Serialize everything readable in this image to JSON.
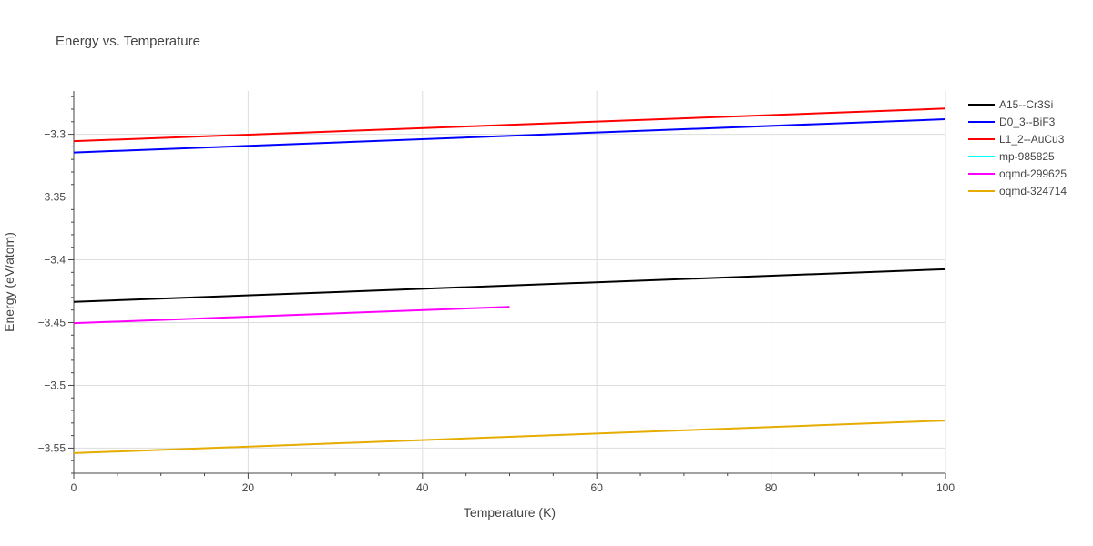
{
  "chart_data": {
    "type": "line",
    "title": "Energy vs. Temperature",
    "xlabel": "Temperature (K)",
    "ylabel": "Energy (eV/atom)",
    "xlim": [
      0,
      100
    ],
    "ylim": [
      -3.57,
      -3.2655
    ],
    "x_ticks": [
      0,
      20,
      40,
      60,
      80,
      100
    ],
    "x_tick_labels": [
      "0",
      "20",
      "40",
      "60",
      "80",
      "100"
    ],
    "y_ticks": [
      -3.3,
      -3.35,
      -3.4,
      -3.45,
      -3.5,
      -3.55
    ],
    "y_tick_labels": [
      "−3.3",
      "−3.35",
      "−3.4",
      "−3.45",
      "−3.5",
      "−3.55"
    ],
    "grid": true,
    "legend_position": "right",
    "series": [
      {
        "name": "A15--Cr3Si",
        "color": "#000000",
        "x": [
          0,
          100
        ],
        "y": [
          -3.4335,
          -3.4075
        ]
      },
      {
        "name": "D0_3--BiF3",
        "color": "#0000ff",
        "x": [
          0,
          100
        ],
        "y": [
          -3.3145,
          -3.288
        ]
      },
      {
        "name": "L1_2--AuCu3",
        "color": "#ff0000",
        "x": [
          0,
          100
        ],
        "y": [
          -3.3055,
          -3.2795
        ]
      },
      {
        "name": "mp-985825",
        "color": "#00ffff",
        "x": [],
        "y": []
      },
      {
        "name": "oqmd-299625",
        "color": "#ff00ff",
        "x": [
          0,
          50
        ],
        "y": [
          -3.4505,
          -3.4375
        ]
      },
      {
        "name": "oqmd-324714",
        "color": "#e6ac00",
        "x": [
          0,
          100
        ],
        "y": [
          -3.554,
          -3.528
        ]
      }
    ]
  }
}
